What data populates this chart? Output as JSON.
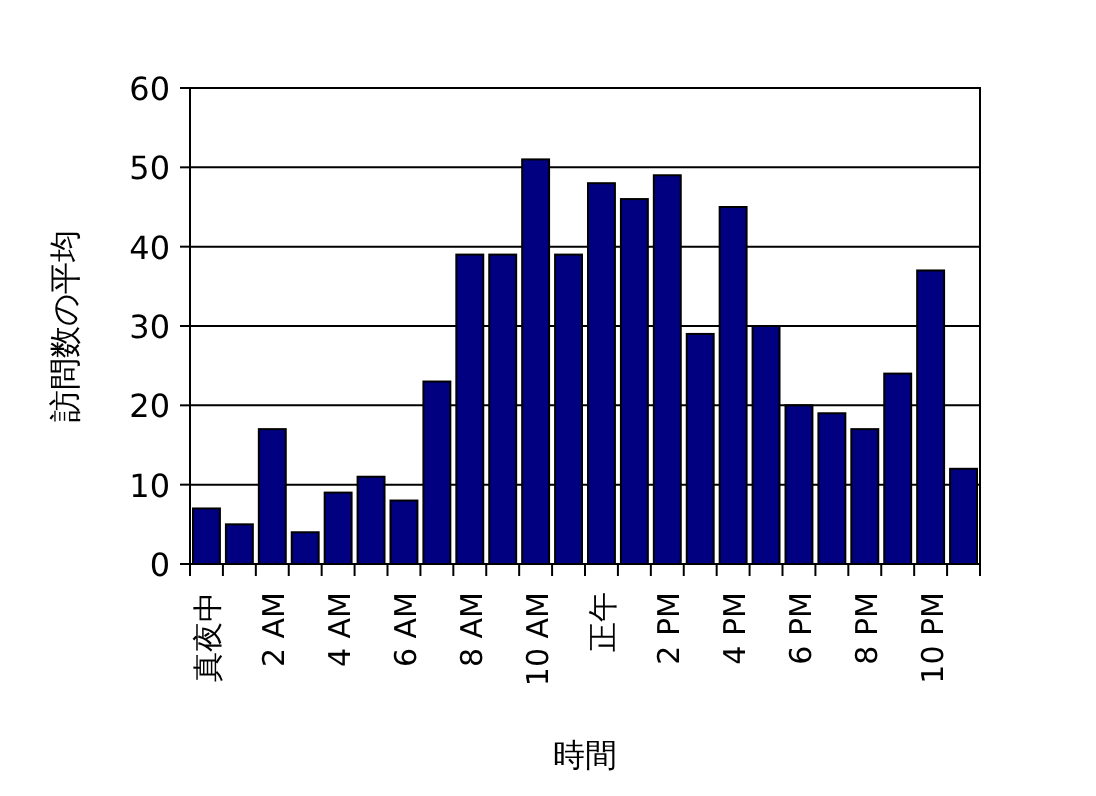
{
  "chart_data": {
    "type": "bar",
    "xlabel": "時間",
    "ylabel": "訪問数の平均",
    "categories": [
      "真夜中",
      null,
      "2 AM",
      null,
      "4 AM",
      null,
      "6 AM",
      null,
      "8 AM",
      null,
      "10 AM",
      null,
      "正午",
      null,
      "2 PM",
      null,
      "4 PM",
      null,
      "6 PM",
      null,
      "8 PM",
      null,
      "10 PM",
      null
    ],
    "values": [
      7,
      5,
      17,
      4,
      9,
      11,
      8,
      23,
      39,
      39,
      51,
      39,
      48,
      46,
      49,
      29,
      45,
      30,
      20,
      19,
      17,
      24,
      37,
      12
    ],
    "color": "#000080",
    "ylim": [
      0,
      60
    ],
    "yticks": [
      0,
      10,
      20,
      30,
      40,
      50,
      60
    ],
    "grid": "y"
  }
}
